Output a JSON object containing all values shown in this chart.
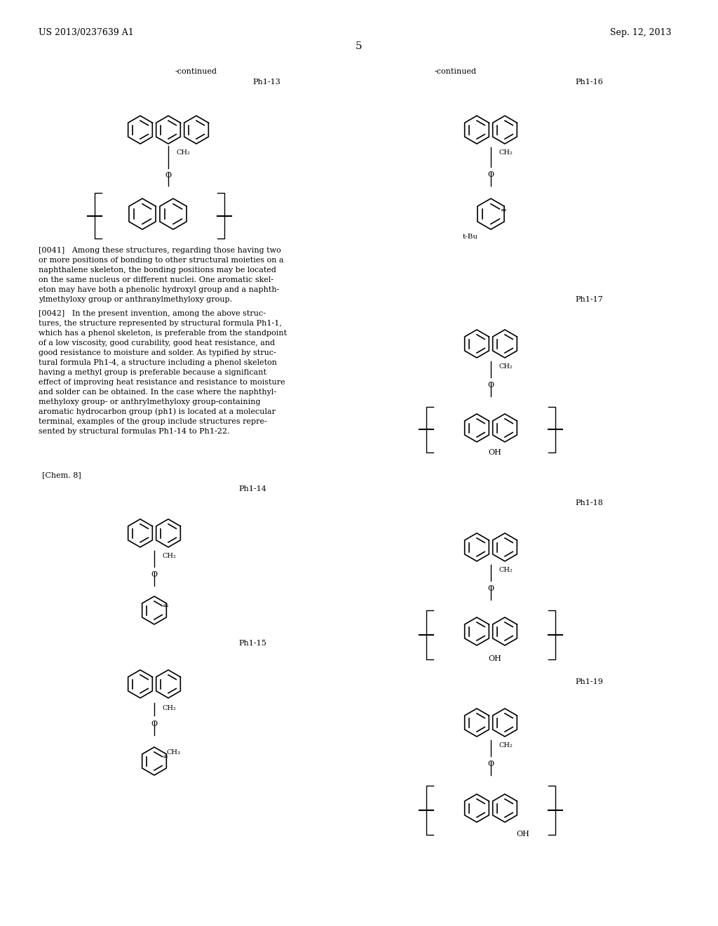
{
  "page_number": "5",
  "patent_number": "US 2013/0237639 A1",
  "patent_date": "Sep. 12, 2013",
  "background_color": "#ffffff",
  "text_color": "#000000",
  "continued_left": "-continued",
  "continued_right": "-continued",
  "label_13": "Ph1-13",
  "label_14": "Ph1-14",
  "label_15": "Ph1-15",
  "label_16": "Ph1-16",
  "label_17": "Ph1-17",
  "label_18": "Ph1-18",
  "label_19": "Ph1-19",
  "chem8_label": "[Chem. 8]",
  "paragraph_0041": "[0041]   Among these structures, regarding those having two or more positions of bonding to other structural moieties on a naphthalene skeleton, the bonding positions may be located on the same nucleus or different nuclei. One aromatic skeleton may have both a phenolic hydroxyl group and a naphthylmethyloxy group or anthranylmethyloxy group.",
  "paragraph_0042": "[0042]   In the present invention, among the above structures, the structure represented by structural formula Ph1-1, which has a phenol skeleton, is preferable from the standpoint of a low viscosity, good curability, good heat resistance, and good resistance to moisture and solder. As typified by structural formula Ph1-4, a structure including a phenol skeleton having a methyl group is preferable because a significant effect of improving heat resistance and resistance to moisture and solder can be obtained. In the case where the naphthylmethyloxy group- or anthrylmethyloxy group-containing aromatic hydrocarbon group (ph1) is located at a molecular terminal, examples of the group include structures represented by structural formulas Ph1-14 to Ph1-22."
}
